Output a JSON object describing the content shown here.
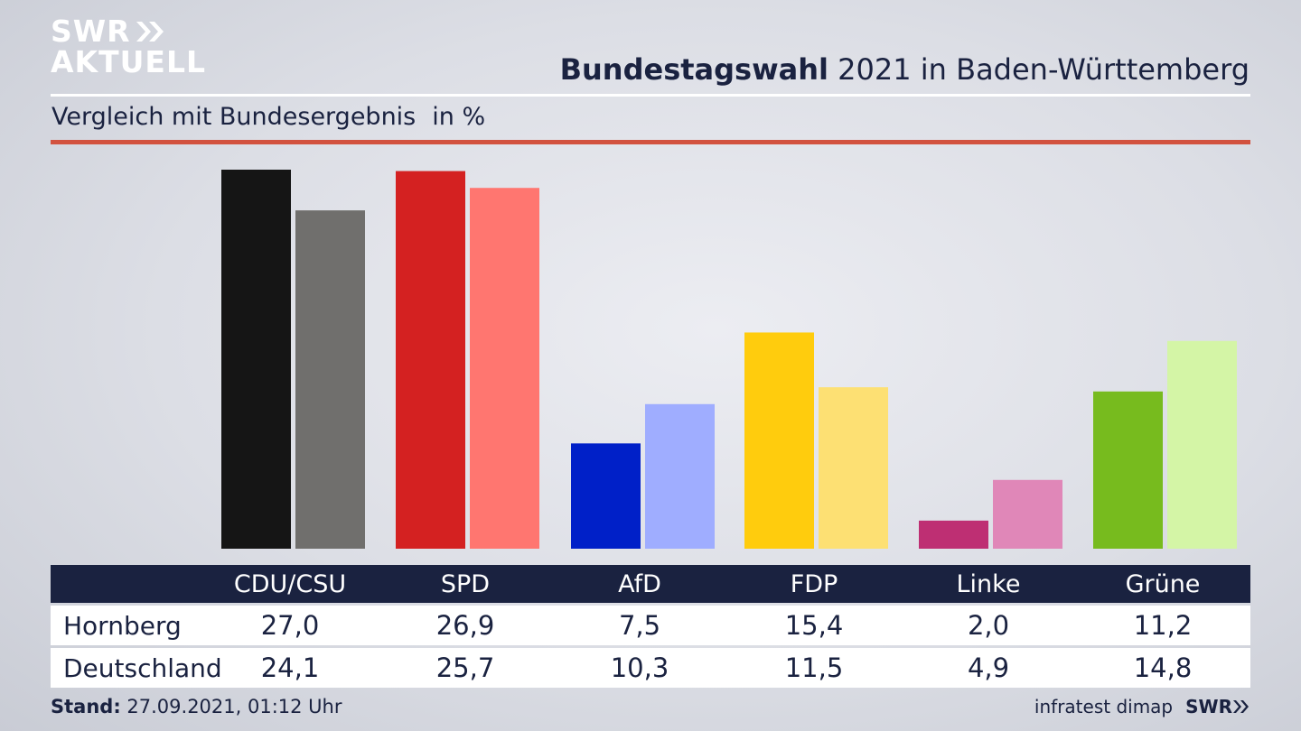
{
  "brand": {
    "logo_line1": "SWR",
    "logo_line2": "AKTUELL"
  },
  "header": {
    "title_bold": "Bundestagswahl",
    "title_rest": " 2021 in Baden-Württemberg",
    "subtitle": "Vergleich mit Bundesergebnis",
    "unit": "in %"
  },
  "chart_data": {
    "type": "bar",
    "title": "Bundestagswahl 2021 in Baden-Württemberg",
    "subtitle": "Vergleich mit Bundesergebnis",
    "unit": "in %",
    "categories": [
      "CDU/CSU",
      "SPD",
      "AfD",
      "FDP",
      "Linke",
      "Grüne"
    ],
    "series": [
      {
        "name": "Hornberg",
        "values": [
          27.0,
          26.9,
          7.5,
          15.4,
          2.0,
          11.2
        ],
        "colors": [
          "#151515",
          "#d42121",
          "#0020c8",
          "#ffcc0d",
          "#be2f73",
          "#77bb1e"
        ]
      },
      {
        "name": "Deutschland",
        "values": [
          24.1,
          25.7,
          10.3,
          11.5,
          4.9,
          14.8
        ],
        "colors": [
          "#706f6d",
          "#ff7670",
          "#9fadff",
          "#fde073",
          "#e087b8",
          "#d4f5a6"
        ]
      }
    ],
    "ylim": [
      0,
      27
    ],
    "grid": false,
    "legend": "table-below"
  },
  "table": {
    "headers": [
      "CDU/CSU",
      "SPD",
      "AfD",
      "FDP",
      "Linke",
      "Grüne"
    ],
    "rows": [
      {
        "label": "Hornberg",
        "values": [
          "27,0",
          "26,9",
          "7,5",
          "15,4",
          "2,0",
          "11,2"
        ]
      },
      {
        "label": "Deutschland",
        "values": [
          "24,1",
          "25,7",
          "10,3",
          "11,5",
          "4,9",
          "14,8"
        ]
      }
    ]
  },
  "footer": {
    "stand_label": "Stand:",
    "stand_value": " 27.09.2021, 01:12 Uhr",
    "source": "infratest dimap",
    "brand": "SWR"
  }
}
